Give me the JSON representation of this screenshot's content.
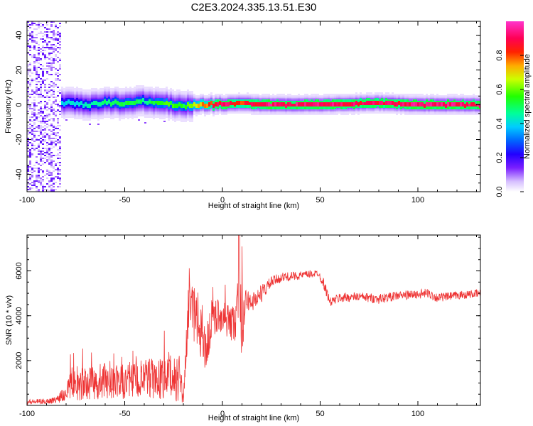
{
  "title": "C2E3.2024.335.13.51.E30",
  "chart_data": [
    {
      "type": "heatmap",
      "xlabel": "Height of straight line (km)",
      "ylabel": "Frequency (Hz)",
      "xlim": [
        -100,
        132
      ],
      "ylim": [
        -50,
        48
      ],
      "xticks": [
        -100,
        -50,
        0,
        50,
        100
      ],
      "yticks": [
        -40,
        -20,
        0,
        20,
        40
      ],
      "colorbar": {
        "label": "Normalized spectral amplitude",
        "range": [
          0,
          1
        ],
        "ticks": [
          "0.0",
          "0.2",
          "0.4",
          "0.6",
          "0.8"
        ],
        "colors": [
          "#ffffff",
          "#ad7fff",
          "#6400ff",
          "#0000ff",
          "#00ccff",
          "#00ff66",
          "#66ff00",
          "#ffff00",
          "#ff8000",
          "#ff0000",
          "#ff0066",
          "#ff33cc"
        ]
      },
      "ridge": {
        "x": [
          -82,
          -70,
          -60,
          -50,
          -40,
          -30,
          -20,
          -10,
          0,
          10,
          20,
          50,
          80,
          100,
          132
        ],
        "freq": [
          1,
          0,
          1,
          1,
          2,
          1,
          -1,
          0,
          0,
          1,
          0,
          0,
          1,
          0,
          0
        ],
        "amplitude": [
          0.4,
          0.45,
          0.5,
          0.55,
          0.5,
          0.6,
          0.55,
          0.8,
          0.95,
          0.85,
          0.95,
          0.95,
          0.92,
          0.95,
          0.95
        ]
      },
      "noise_region_x": [
        -100,
        -83
      ]
    },
    {
      "type": "line",
      "xlabel": "Height of straight line (km)",
      "ylabel": "SNR (10 * v/v)",
      "xlim": [
        -100,
        132
      ],
      "ylim": [
        0,
        7600
      ],
      "xticks": [
        -100,
        -50,
        0,
        50,
        100
      ],
      "yticks": [
        2000,
        4000,
        6000
      ],
      "color": "#ee3333",
      "envelope": {
        "x": [
          -100,
          -90,
          -85,
          -82,
          -78,
          -70,
          -60,
          -50,
          -40,
          -30,
          -22,
          -20,
          -17,
          -12,
          -8,
          -5,
          0,
          5,
          8,
          10,
          12,
          15,
          20,
          25,
          30,
          35,
          40,
          45,
          49,
          52,
          55,
          60,
          70,
          80,
          90,
          100,
          105,
          110,
          120,
          132
        ],
        "mean": [
          150,
          180,
          250,
          500,
          900,
          950,
          1000,
          1050,
          1150,
          1200,
          1250,
          300,
          4500,
          3600,
          2600,
          4000,
          4000,
          3600,
          4200,
          3800,
          4700,
          4600,
          5000,
          5500,
          5700,
          5750,
          5800,
          5850,
          5900,
          5400,
          4600,
          4800,
          4850,
          4750,
          4900,
          4950,
          5000,
          4800,
          4900,
          5000
        ],
        "spread": [
          120,
          120,
          150,
          350,
          700,
          750,
          750,
          800,
          900,
          950,
          1100,
          250,
          1000,
          1400,
          1300,
          900,
          700,
          800,
          1500,
          1700,
          500,
          450,
          400,
          250,
          220,
          200,
          180,
          180,
          150,
          250,
          200,
          220,
          200,
          220,
          200,
          200,
          220,
          200,
          180,
          180
        ]
      }
    }
  ]
}
